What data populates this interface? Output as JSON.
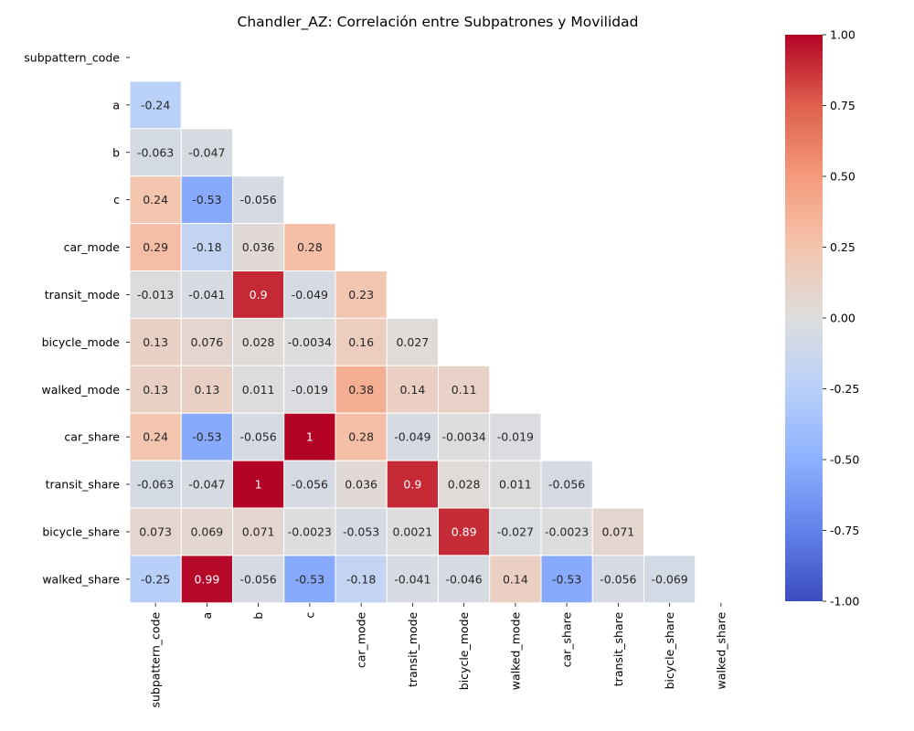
{
  "chart_data": {
    "type": "heatmap",
    "title": "Chandler_AZ: Correlación entre Subpatrones y Movilidad",
    "labels": [
      "subpattern_code",
      "a",
      "b",
      "c",
      "car_mode",
      "transit_mode",
      "bicycle_mode",
      "walked_mode",
      "car_share",
      "transit_share",
      "bicycle_share",
      "walked_share"
    ],
    "lower_triangle": [
      [],
      [
        "-0.24"
      ],
      [
        "-0.063",
        "-0.047"
      ],
      [
        "0.24",
        "-0.53",
        "-0.056"
      ],
      [
        "0.29",
        "-0.18",
        "0.036",
        "0.28"
      ],
      [
        "-0.013",
        "-0.041",
        "0.9",
        "-0.049",
        "0.23"
      ],
      [
        "0.13",
        "0.076",
        "0.028",
        "-0.0034",
        "0.16",
        "0.027"
      ],
      [
        "0.13",
        "0.13",
        "0.011",
        "-0.019",
        "0.38",
        "0.14",
        "0.11"
      ],
      [
        "0.24",
        "-0.53",
        "-0.056",
        "1",
        "0.28",
        "-0.049",
        "-0.0034",
        "-0.019"
      ],
      [
        "-0.063",
        "-0.047",
        "1",
        "-0.056",
        "0.036",
        "0.9",
        "0.028",
        "0.011",
        "-0.056"
      ],
      [
        "0.073",
        "0.069",
        "0.071",
        "-0.0023",
        "-0.053",
        "0.0021",
        "0.89",
        "-0.027",
        "-0.0023",
        "0.071"
      ],
      [
        "-0.25",
        "0.99",
        "-0.056",
        "-0.53",
        "-0.18",
        "-0.041",
        "-0.046",
        "0.14",
        "-0.53",
        "-0.056",
        "-0.069"
      ]
    ],
    "mask": "upper triangle including diagonal",
    "colormap": "coolwarm",
    "vmin": -1,
    "vmax": 1,
    "colorbar_ticks": [
      "-1.00",
      "-0.75",
      "-0.50",
      "-0.25",
      "0.00",
      "0.25",
      "0.50",
      "0.75",
      "1.00"
    ],
    "colors": {
      "low": "#3b4cc0",
      "mid": "#dddddd",
      "high": "#b40426",
      "grid_line": "#ffffff"
    }
  }
}
